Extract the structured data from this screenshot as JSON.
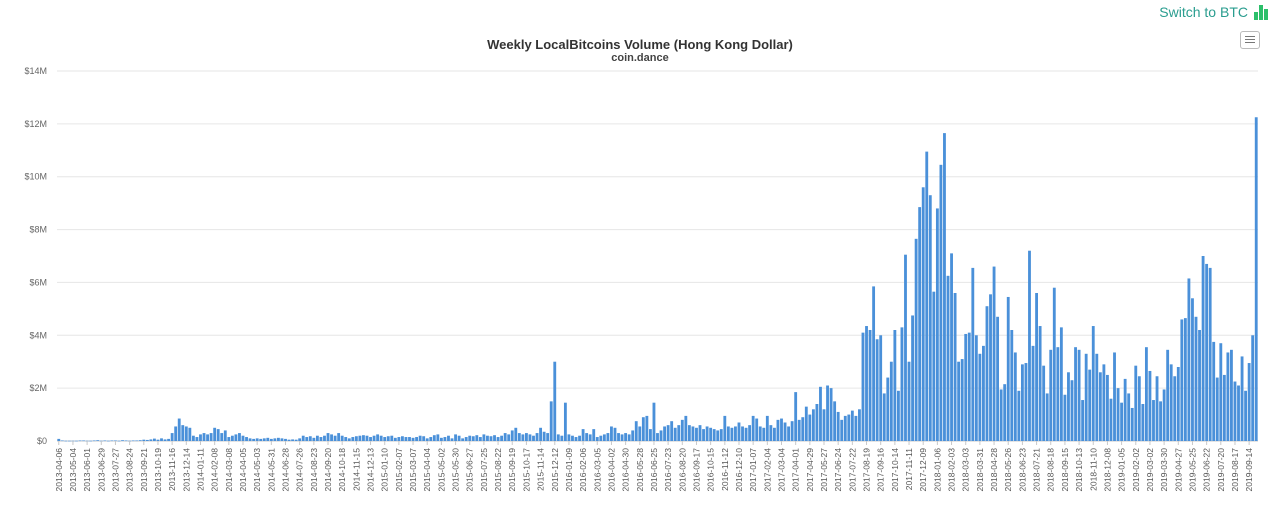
{
  "header": {
    "switch_label": "Switch to BTC",
    "switch_icon": "bar-chart-icon",
    "menu_icon": "hamburger-menu-icon"
  },
  "colors": {
    "bar": "#4a90d9",
    "grid": "#e6e6e6",
    "switch_text": "#2a9d8f",
    "switch_icon": "#2cbf6a"
  },
  "chart_data": {
    "type": "bar",
    "title": "Weekly LocalBitcoins Volume (Hong Kong Dollar)",
    "subtitle": "coin.dance",
    "xlabel": "",
    "ylabel": "",
    "ylim": [
      0,
      14000000
    ],
    "y_ticks": [
      "$0",
      "$2M",
      "$4M",
      "$6M",
      "$8M",
      "$10M",
      "$12M",
      "$14M"
    ],
    "y_tick_values": [
      0,
      2000000,
      4000000,
      6000000,
      8000000,
      10000000,
      12000000,
      14000000
    ],
    "grid": true,
    "legend": "none",
    "x_tick_labels": [
      "2013-04-06",
      "2013-05-04",
      "2013-06-01",
      "2013-06-29",
      "2013-07-27",
      "2013-08-24",
      "2013-09-21",
      "2013-10-19",
      "2013-11-16",
      "2013-12-14",
      "2014-01-11",
      "2014-02-08",
      "2014-03-08",
      "2014-04-05",
      "2014-05-03",
      "2014-05-31",
      "2014-06-28",
      "2014-07-26",
      "2014-08-23",
      "2014-09-20",
      "2014-10-18",
      "2014-11-15",
      "2014-12-13",
      "2015-01-10",
      "2015-02-07",
      "2015-03-07",
      "2015-04-04",
      "2015-05-02",
      "2015-05-30",
      "2015-06-27",
      "2015-07-25",
      "2015-08-22",
      "2015-09-19",
      "2015-10-17",
      "2015-11-14",
      "2015-12-12",
      "2016-01-09",
      "2016-02-06",
      "2016-03-05",
      "2016-04-02",
      "2016-04-30",
      "2016-05-28",
      "2016-06-25",
      "2016-07-23",
      "2016-08-20",
      "2016-09-17",
      "2016-10-15",
      "2016-11-12",
      "2016-12-10",
      "2017-01-07",
      "2017-02-04",
      "2017-03-04",
      "2017-04-01",
      "2017-04-29",
      "2017-05-27",
      "2017-06-24",
      "2017-07-22",
      "2017-08-19",
      "2017-09-16",
      "2017-10-14",
      "2017-11-11",
      "2017-12-09",
      "2018-01-06",
      "2018-02-03",
      "2018-03-03",
      "2018-03-31",
      "2018-04-28",
      "2018-05-26",
      "2018-06-23",
      "2018-07-21",
      "2018-08-18",
      "2018-09-15",
      "2018-10-13",
      "2018-11-10",
      "2018-12-08",
      "2019-01-05",
      "2019-02-02",
      "2019-03-02",
      "2019-03-30",
      "2019-04-27",
      "2019-05-25",
      "2019-06-22",
      "2019-07-20",
      "2019-08-17",
      "2019-09-14"
    ],
    "values_millions": [
      0.08,
      0.02,
      0.01,
      0.01,
      0.01,
      0.01,
      0.02,
      0.02,
      0.01,
      0.01,
      0.02,
      0.03,
      0.01,
      0.02,
      0.01,
      0.02,
      0.02,
      0.01,
      0.03,
      0.02,
      0.01,
      0.02,
      0.02,
      0.03,
      0.05,
      0.04,
      0.06,
      0.09,
      0.05,
      0.1,
      0.06,
      0.08,
      0.3,
      0.55,
      0.85,
      0.6,
      0.55,
      0.5,
      0.2,
      0.15,
      0.25,
      0.3,
      0.25,
      0.3,
      0.5,
      0.45,
      0.3,
      0.4,
      0.15,
      0.2,
      0.25,
      0.3,
      0.2,
      0.15,
      0.1,
      0.08,
      0.1,
      0.08,
      0.1,
      0.12,
      0.08,
      0.1,
      0.12,
      0.1,
      0.08,
      0.05,
      0.06,
      0.05,
      0.1,
      0.2,
      0.15,
      0.18,
      0.12,
      0.2,
      0.15,
      0.2,
      0.3,
      0.25,
      0.2,
      0.3,
      0.2,
      0.15,
      0.1,
      0.15,
      0.18,
      0.2,
      0.22,
      0.2,
      0.15,
      0.2,
      0.25,
      0.2,
      0.15,
      0.18,
      0.2,
      0.12,
      0.15,
      0.18,
      0.15,
      0.15,
      0.12,
      0.15,
      0.2,
      0.18,
      0.1,
      0.15,
      0.22,
      0.25,
      0.12,
      0.15,
      0.2,
      0.1,
      0.25,
      0.2,
      0.1,
      0.15,
      0.2,
      0.18,
      0.22,
      0.15,
      0.25,
      0.2,
      0.18,
      0.22,
      0.15,
      0.2,
      0.3,
      0.25,
      0.4,
      0.5,
      0.3,
      0.25,
      0.3,
      0.25,
      0.2,
      0.3,
      0.5,
      0.35,
      0.3,
      1.5,
      3.0,
      0.25,
      0.2,
      1.45,
      0.25,
      0.2,
      0.15,
      0.2,
      0.45,
      0.3,
      0.25,
      0.45,
      0.15,
      0.2,
      0.25,
      0.3,
      0.55,
      0.5,
      0.3,
      0.25,
      0.3,
      0.25,
      0.4,
      0.75,
      0.55,
      0.9,
      0.95,
      0.45,
      1.45,
      0.3,
      0.4,
      0.55,
      0.6,
      0.75,
      0.5,
      0.6,
      0.8,
      0.95,
      0.6,
      0.55,
      0.5,
      0.6,
      0.45,
      0.55,
      0.5,
      0.45,
      0.4,
      0.45,
      0.95,
      0.55,
      0.5,
      0.55,
      0.7,
      0.55,
      0.5,
      0.6,
      0.95,
      0.85,
      0.55,
      0.5,
      0.95,
      0.6,
      0.5,
      0.8,
      0.85,
      0.7,
      0.55,
      0.75,
      1.85,
      0.8,
      0.9,
      1.3,
      1.0,
      1.2,
      1.4,
      2.05,
      1.2,
      2.1,
      2.0,
      1.5,
      1.1,
      0.8,
      0.95,
      1.0,
      1.15,
      0.95,
      1.2,
      4.1,
      4.35,
      4.2,
      5.85,
      3.85,
      4.0,
      1.8,
      2.4,
      3.0,
      4.2,
      1.9,
      4.3,
      7.05,
      3.0,
      4.75,
      7.65,
      8.85,
      9.6,
      10.95,
      9.3,
      5.65,
      8.8,
      10.45,
      11.65,
      6.25,
      7.1,
      5.6,
      3.0,
      3.1,
      4.05,
      4.1,
      6.55,
      4.0,
      3.3,
      3.6,
      5.1,
      5.55,
      6.6,
      4.7,
      1.95,
      2.15,
      5.45,
      4.2,
      3.35,
      1.9,
      2.9,
      2.95,
      7.2,
      3.6,
      5.6,
      4.35,
      2.85,
      1.8,
      3.45,
      5.8,
      3.55,
      4.3,
      1.75,
      2.6,
      2.3,
      3.55,
      3.45,
      1.55,
      3.3,
      2.7,
      4.35,
      3.3,
      2.6,
      2.9,
      2.5,
      1.6,
      3.35,
      2.0,
      1.45,
      2.35,
      1.8,
      1.25,
      2.85,
      2.45,
      1.4,
      3.55,
      2.65,
      1.55,
      2.45,
      1.5,
      1.95,
      3.45,
      2.9,
      2.45,
      2.8,
      4.6,
      4.65,
      6.15,
      5.4,
      4.7,
      4.2,
      7.0,
      6.7,
      6.55,
      3.75,
      2.4,
      3.7,
      2.5,
      3.35,
      3.45,
      2.25,
      2.1,
      3.2,
      1.9,
      2.95,
      4.0,
      12.25
    ]
  }
}
